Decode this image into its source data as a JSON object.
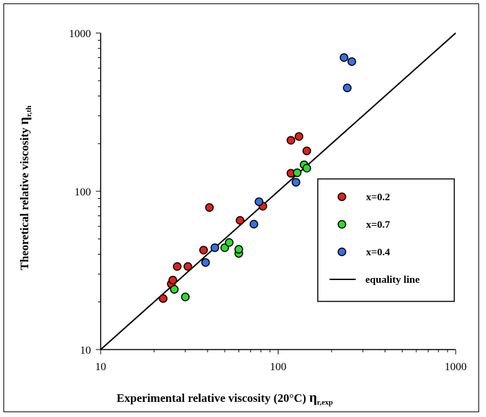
{
  "chart_data": {
    "type": "scatter",
    "xscale": "log",
    "yscale": "log",
    "xlim": [
      10,
      1000
    ],
    "ylim": [
      10,
      1000
    ],
    "grid": false,
    "legend_position": "right",
    "xlabel": "Experimental relative viscosity (20°C)",
    "xlabel_symbol": "η",
    "xlabel_sub": "r,exp",
    "ylabel": "Theoretical relative viscosity",
    "ylabel_symbol": "η",
    "ylabel_sub": "r,th",
    "x_ticks": [
      10,
      100,
      1000
    ],
    "x_tick_labels": [
      "10",
      "100",
      "1000"
    ],
    "y_ticks": [
      10,
      100,
      1000
    ],
    "y_tick_labels": [
      "10",
      "100",
      "1000"
    ],
    "series": [
      {
        "name": "x=0.2",
        "color": "#e0201b",
        "points": [
          [
            22.5,
            21
          ],
          [
            25,
            26
          ],
          [
            25.5,
            27.5
          ],
          [
            27,
            33.5
          ],
          [
            31,
            33.5
          ],
          [
            38,
            42.5
          ],
          [
            41,
            79
          ],
          [
            61,
            65.5
          ],
          [
            82,
            80.5
          ],
          [
            118,
            130
          ],
          [
            118,
            210
          ],
          [
            131,
            222
          ],
          [
            145,
            180
          ]
        ]
      },
      {
        "name": "x=0.7",
        "color": "#30d930",
        "points": [
          [
            26,
            24
          ],
          [
            30,
            21.5
          ],
          [
            50,
            44
          ],
          [
            53,
            47.5
          ],
          [
            60,
            40.5
          ],
          [
            60,
            43
          ],
          [
            128,
            131
          ],
          [
            140,
            147
          ],
          [
            145,
            140
          ]
        ]
      },
      {
        "name": "x=0.4",
        "color": "#3b6fe6",
        "points": [
          [
            39,
            35.5
          ],
          [
            44,
            44
          ],
          [
            73,
            62
          ],
          [
            78,
            86
          ],
          [
            126,
            114
          ],
          [
            235,
            700
          ],
          [
            245,
            450
          ],
          [
            260,
            660
          ]
        ]
      }
    ],
    "equality_line": {
      "name": "equality line",
      "from": [
        10,
        10
      ],
      "to": [
        1000,
        1000
      ]
    }
  }
}
